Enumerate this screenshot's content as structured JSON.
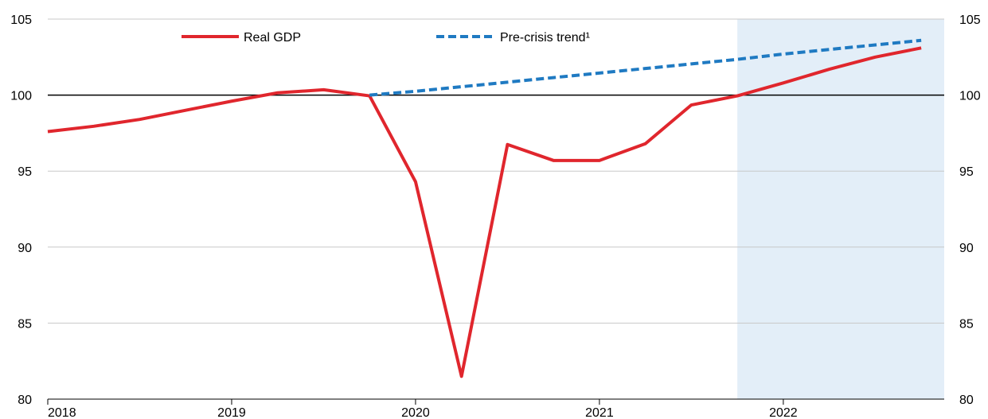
{
  "chart_data": {
    "type": "line",
    "x_ticks": [
      "2018",
      "2019",
      "2020",
      "2021",
      "2022"
    ],
    "ylim": [
      80,
      105
    ],
    "y_ticks": [
      80,
      85,
      90,
      95,
      100,
      105
    ],
    "y_axis_both_sides": true,
    "grid": "horizontal",
    "reference_line": 100,
    "legend_position": "top-center",
    "shaded_region": {
      "from": 2021.75,
      "to": 2022.875,
      "color": "#e3eef8"
    },
    "series": [
      {
        "name": "Real GDP",
        "color": "#e0262d",
        "style": "solid",
        "points": [
          [
            2018.0,
            97.6
          ],
          [
            2018.25,
            97.95
          ],
          [
            2018.5,
            98.4
          ],
          [
            2018.75,
            99.0
          ],
          [
            2019.0,
            99.6
          ],
          [
            2019.25,
            100.15
          ],
          [
            2019.5,
            100.35
          ],
          [
            2019.75,
            99.95
          ],
          [
            2020.0,
            94.3
          ],
          [
            2020.25,
            81.5
          ],
          [
            2020.5,
            96.75
          ],
          [
            2020.75,
            95.7
          ],
          [
            2021.0,
            95.7
          ],
          [
            2021.25,
            96.8
          ],
          [
            2021.5,
            99.35
          ],
          [
            2021.75,
            99.95
          ],
          [
            2022.0,
            100.8
          ],
          [
            2022.25,
            101.7
          ],
          [
            2022.5,
            102.5
          ],
          [
            2022.75,
            103.1
          ]
        ]
      },
      {
        "name": "Pre-crisis trend¹",
        "color": "#1f7ac2",
        "style": "dashed",
        "points": [
          [
            2019.75,
            100.0
          ],
          [
            2020.0,
            100.25
          ],
          [
            2020.25,
            100.55
          ],
          [
            2020.5,
            100.85
          ],
          [
            2020.75,
            101.15
          ],
          [
            2021.0,
            101.45
          ],
          [
            2021.25,
            101.75
          ],
          [
            2021.5,
            102.05
          ],
          [
            2021.75,
            102.35
          ],
          [
            2022.0,
            102.7
          ],
          [
            2022.25,
            103.0
          ],
          [
            2022.5,
            103.3
          ],
          [
            2022.75,
            103.6
          ]
        ]
      }
    ]
  }
}
